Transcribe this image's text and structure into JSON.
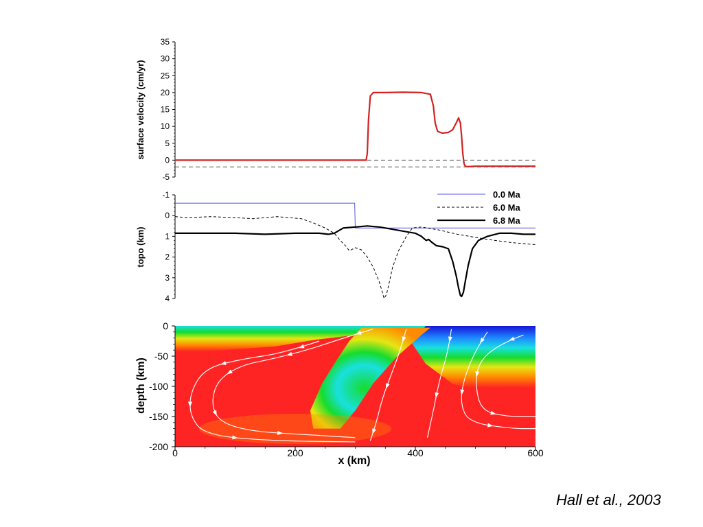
{
  "citation": "Hall et al., 2003",
  "chart_data": [
    {
      "type": "line",
      "panel": "surface-velocity",
      "xlabel": "",
      "ylabel": "surface velocity (cm/yr)",
      "xlim": [
        0,
        600
      ],
      "ylim": [
        -5,
        35
      ],
      "yticks": [
        -5,
        0,
        5,
        10,
        15,
        20,
        25,
        30,
        35
      ],
      "reference_lines": [
        0,
        -2
      ],
      "series": [
        {
          "color": "#d42020",
          "x": [
            0,
            100,
            200,
            300,
            318,
            320,
            322,
            325,
            330,
            350,
            380,
            410,
            425,
            430,
            433,
            437,
            445,
            455,
            462,
            468,
            472,
            475,
            477,
            479,
            481,
            483,
            485,
            490,
            500,
            530,
            570,
            600
          ],
          "y": [
            0,
            0,
            0,
            0,
            0,
            2,
            12,
            19,
            20,
            20,
            20.1,
            20,
            19.5,
            16,
            11,
            8.5,
            8,
            8.2,
            9,
            11,
            12.5,
            11,
            7,
            2,
            -1,
            -1.8,
            -1.9,
            -1.9,
            -1.8,
            -1.8,
            -1.8,
            -1.8
          ]
        }
      ]
    },
    {
      "type": "line",
      "panel": "topography",
      "xlabel": "",
      "ylabel": "topo (km)",
      "xlim": [
        0,
        600
      ],
      "ylim": [
        -1,
        4
      ],
      "y_inverted": true,
      "yticks": [
        -1,
        0,
        1,
        2,
        3,
        4
      ],
      "legend": "top-right",
      "series": [
        {
          "name": "0.0 Ma",
          "color": "#5555dd",
          "x": [
            0,
            299,
            300,
            600
          ],
          "y": [
            -0.6,
            -0.6,
            0.6,
            0.6
          ]
        },
        {
          "name": "6.0 Ma",
          "color": "#000000",
          "dash": true,
          "x": [
            0,
            20,
            60,
            100,
            130,
            170,
            210,
            230,
            250,
            265,
            275,
            285,
            290,
            300,
            310,
            320,
            330,
            340,
            345,
            348,
            352,
            356,
            362,
            372,
            385,
            395,
            410,
            440,
            470,
            520,
            560,
            600
          ],
          "y": [
            0.05,
            0.1,
            0.05,
            0.1,
            0.15,
            0.05,
            0.15,
            0.35,
            0.6,
            0.85,
            1.2,
            1.5,
            1.7,
            1.55,
            1.65,
            2.0,
            2.5,
            3.2,
            3.7,
            4.0,
            3.8,
            3.3,
            2.5,
            1.7,
            1.0,
            0.6,
            0.55,
            0.7,
            0.9,
            1.15,
            1.3,
            1.4
          ]
        },
        {
          "name": "6.8 Ma",
          "color": "#000000",
          "width": 2.2,
          "x": [
            0,
            50,
            100,
            150,
            200,
            240,
            255,
            265,
            280,
            300,
            320,
            340,
            360,
            380,
            400,
            410,
            418,
            422,
            428,
            435,
            445,
            455,
            462,
            468,
            472,
            475,
            477,
            480,
            483,
            488,
            495,
            505,
            520,
            540,
            560,
            580,
            600
          ],
          "y": [
            0.85,
            0.85,
            0.85,
            0.9,
            0.85,
            0.85,
            0.9,
            0.85,
            0.6,
            0.55,
            0.5,
            0.55,
            0.65,
            0.75,
            0.85,
            1.0,
            1.2,
            1.15,
            1.3,
            1.45,
            1.5,
            1.6,
            2.2,
            2.9,
            3.5,
            3.85,
            3.9,
            3.7,
            3.2,
            2.4,
            1.6,
            1.2,
            1.0,
            0.85,
            0.85,
            0.9,
            0.9
          ]
        }
      ]
    },
    {
      "type": "heatmap",
      "panel": "depth-cross-section",
      "xlabel": "x (km)",
      "ylabel": "depth (km)",
      "xlim": [
        0,
        600
      ],
      "ylim": [
        -200,
        0
      ],
      "xticks": [
        0,
        200,
        400,
        600
      ],
      "yticks": [
        0,
        -50,
        -100,
        -150,
        -200
      ],
      "colormap": [
        "#1414d8",
        "#1e8cff",
        "#18e0e0",
        "#16dc2c",
        "#e6e614",
        "#ff8c00",
        "#ff1a1a"
      ],
      "background_color": "#ff2424",
      "slab_path_km": [
        [
          310,
          -3
        ],
        [
          290,
          -25
        ],
        [
          270,
          -55
        ],
        [
          245,
          -95
        ],
        [
          225,
          -140
        ],
        [
          230,
          -170
        ],
        [
          275,
          -170
        ],
        [
          300,
          -140
        ],
        [
          330,
          -95
        ],
        [
          370,
          -50
        ],
        [
          410,
          -15
        ],
        [
          425,
          -3
        ]
      ],
      "streamlines_km": [
        [
          [
            330,
            -5
          ],
          [
            280,
            -20
          ],
          [
            220,
            -40
          ],
          [
            160,
            -55
          ],
          [
            110,
            -65
          ],
          [
            70,
            -90
          ],
          [
            60,
            -130
          ],
          [
            75,
            -160
          ],
          [
            130,
            -175
          ],
          [
            220,
            -180
          ],
          [
            300,
            -185
          ]
        ],
        [
          [
            240,
            -25
          ],
          [
            180,
            -45
          ],
          [
            110,
            -55
          ],
          [
            50,
            -70
          ],
          [
            25,
            -110
          ],
          [
            25,
            -150
          ],
          [
            50,
            -180
          ],
          [
            150,
            -190
          ],
          [
            300,
            -192
          ]
        ],
        [
          [
            460,
            -5
          ],
          [
            455,
            -40
          ],
          [
            440,
            -90
          ],
          [
            430,
            -140
          ],
          [
            420,
            -185
          ]
        ],
        [
          [
            520,
            -10
          ],
          [
            500,
            -40
          ],
          [
            480,
            -90
          ],
          [
            475,
            -130
          ],
          [
            490,
            -160
          ],
          [
            560,
            -170
          ],
          [
            600,
            -170
          ]
        ],
        [
          [
            580,
            -15
          ],
          [
            540,
            -30
          ],
          [
            505,
            -60
          ],
          [
            500,
            -100
          ],
          [
            510,
            -140
          ],
          [
            550,
            -150
          ],
          [
            600,
            -150
          ]
        ],
        [
          [
            385,
            -5
          ],
          [
            375,
            -40
          ],
          [
            360,
            -80
          ],
          [
            345,
            -120
          ],
          [
            335,
            -160
          ],
          [
            325,
            -190
          ]
        ]
      ]
    }
  ]
}
